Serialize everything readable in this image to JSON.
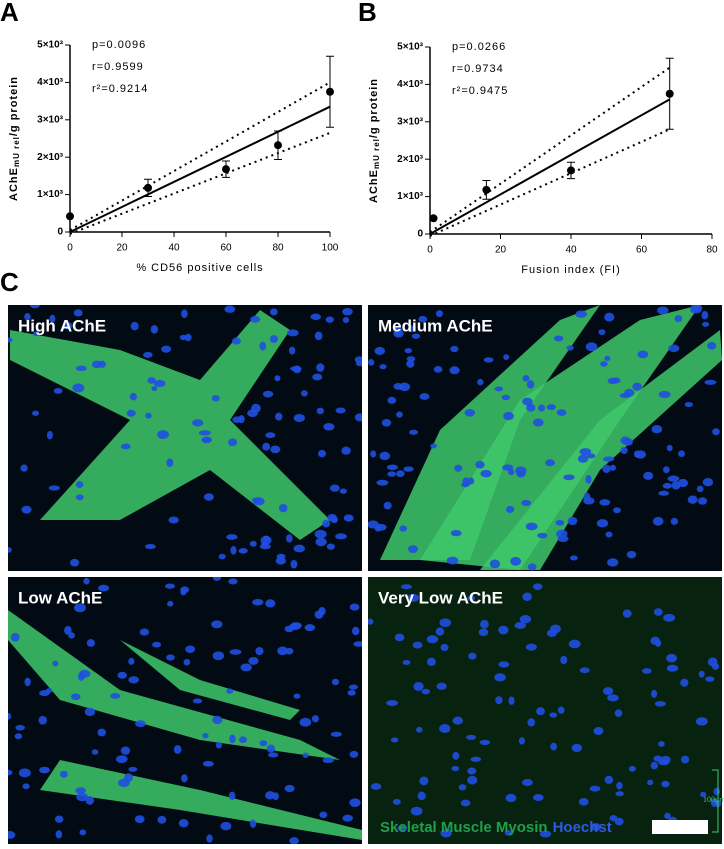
{
  "chart_data": [
    {
      "type": "scatter",
      "panel_label": "A",
      "x": [
        0,
        30,
        60,
        80,
        100
      ],
      "values": [
        420,
        1180,
        1680,
        2320,
        3750
      ],
      "errors": [
        null,
        230,
        220,
        380,
        950
      ],
      "color": "#000000",
      "xlim": [
        0,
        100
      ],
      "xticks": [
        0,
        20,
        40,
        60,
        80,
        100
      ],
      "ylim": [
        0,
        5000
      ],
      "yticks": [
        0,
        {
          "value": 1000,
          "label": "1×10³"
        },
        {
          "value": 2000,
          "label": "2×10³"
        },
        {
          "value": 3000,
          "label": "3×10³"
        },
        {
          "value": 4000,
          "label": "4×10³"
        },
        {
          "value": 5000,
          "label": "5×10³"
        }
      ],
      "x_label": "% CD56 positive cells",
      "y_label": "AChE",
      "y_label_sub": "mU rel",
      "y_label_rest": "/g protein",
      "annotations": [
        "p=0.0096",
        "r=0.9599",
        "r²=0.9214"
      ],
      "fit": {
        "x": [
          0,
          100
        ],
        "values": [
          0,
          3350
        ]
      },
      "ci": [
        {
          "x": [
            0,
            100
          ],
          "values": [
            50,
            4000
          ]
        },
        {
          "x": [
            0,
            100
          ],
          "values": [
            -50,
            2650
          ]
        }
      ]
    },
    {
      "type": "scatter",
      "panel_label": "B",
      "x": [
        1,
        16,
        40,
        68
      ],
      "values": [
        420,
        1180,
        1700,
        3750
      ],
      "errors": [
        null,
        250,
        220,
        950
      ],
      "color": "#000000",
      "xlim": [
        0,
        80
      ],
      "xticks": [
        0,
        20,
        40,
        60,
        80
      ],
      "ylim": [
        0,
        5000
      ],
      "yticks": [
        0,
        {
          "value": 1000,
          "label": "1×10³"
        },
        {
          "value": 2000,
          "label": "2×10³"
        },
        {
          "value": 3000,
          "label": "3×10³"
        },
        {
          "value": 4000,
          "label": "4×10³"
        },
        {
          "value": 5000,
          "label": "5×10³"
        }
      ],
      "x_label": "Fusion index (FI)",
      "y_label": "AChE",
      "y_label_sub": "mU rel",
      "y_label_rest": "/g protein",
      "annotations": [
        "p=0.0266",
        "r=0.9734",
        "r²=0.9475"
      ],
      "fit": {
        "x": [
          0,
          68
        ],
        "values": [
          0,
          3600
        ]
      },
      "ci": [
        {
          "x": [
            0,
            68
          ],
          "values": [
            50,
            4450
          ]
        },
        {
          "x": [
            0,
            68
          ],
          "values": [
            -50,
            2800
          ]
        }
      ]
    }
  ],
  "images": {
    "panel_label": "C",
    "tiles": [
      "High AChE",
      "Medium AChE",
      "Low AChE",
      "Very Low AChE"
    ],
    "legend": [
      "Skeletal Muscle Myosin",
      "Hoechst"
    ],
    "scale_label": "100μm"
  }
}
